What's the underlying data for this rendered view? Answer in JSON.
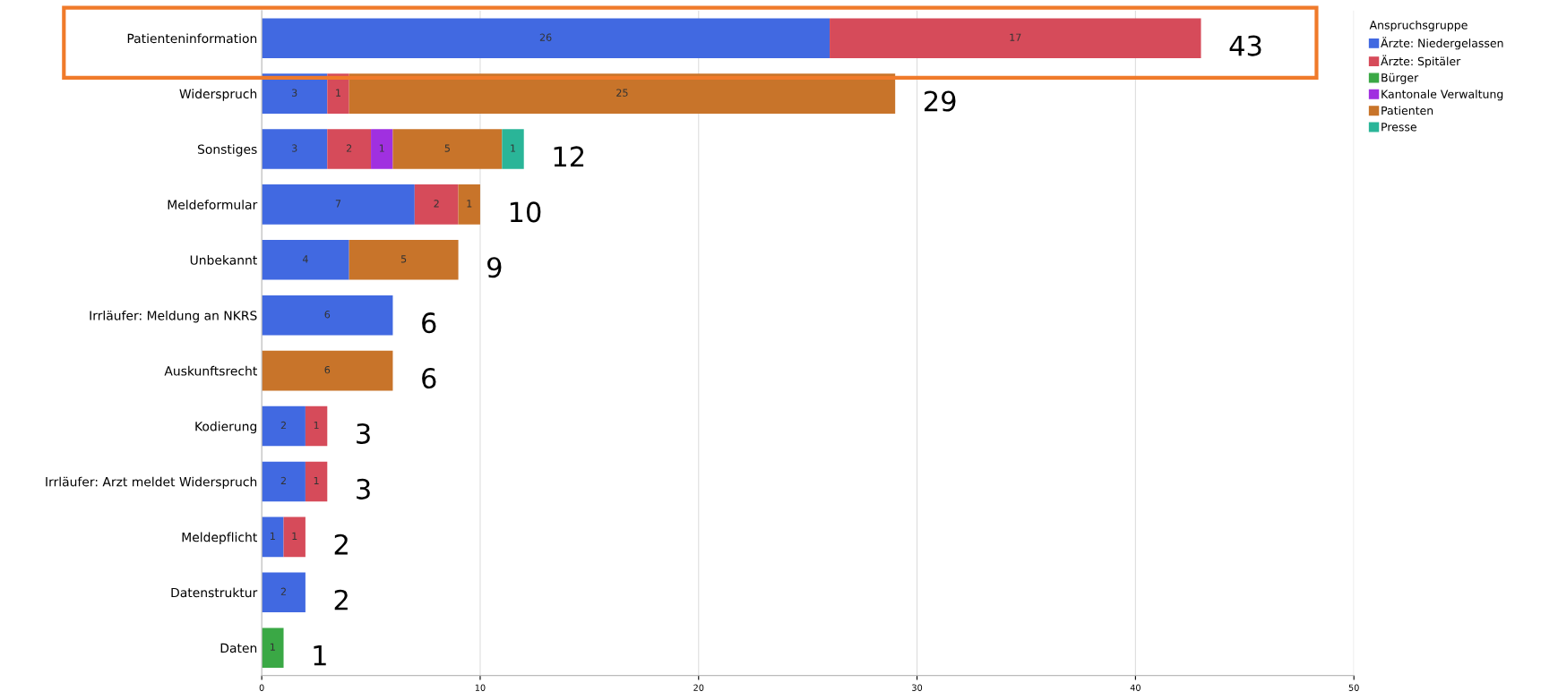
{
  "chart_data": {
    "type": "bar",
    "orientation": "horizontal",
    "stacked": true,
    "data_labels": true,
    "legend": "top right",
    "legend_title": "Anspruchsgruppe",
    "grid": "x",
    "categories": [
      "Patienteninformation",
      "Widerspruch",
      "Sonstiges",
      "Meldeformular",
      "Unbekannt",
      "Irrläufer: Meldung an NKRS",
      "Auskunftsrecht",
      "Kodierung",
      "Irrläufer: Arzt meldet Widerspruch",
      "Meldepflicht",
      "Datenstruktur",
      "Daten"
    ],
    "series": [
      {
        "name": "Ärzte: Niedergelassen",
        "color": "#4169e1",
        "values": [
          26,
          3,
          3,
          7,
          4,
          6,
          null,
          2,
          2,
          1,
          2,
          null
        ]
      },
      {
        "name": "Ärzte: Spitäler",
        "color": "#d64b5a",
        "values": [
          17,
          1,
          2,
          2,
          null,
          null,
          null,
          1,
          1,
          1,
          null,
          null
        ]
      },
      {
        "name": "Bürger",
        "color": "#3aa845",
        "values": [
          null,
          null,
          null,
          null,
          null,
          null,
          null,
          null,
          null,
          null,
          null,
          1
        ]
      },
      {
        "name": "Kantonale Verwaltung",
        "color": "#a030e0",
        "values": [
          null,
          null,
          1,
          null,
          null,
          null,
          null,
          null,
          null,
          null,
          null,
          null
        ]
      },
      {
        "name": "Patienten",
        "color": "#c8742a",
        "values": [
          null,
          25,
          5,
          1,
          5,
          null,
          6,
          null,
          null,
          null,
          null,
          null
        ]
      },
      {
        "name": "Presse",
        "color": "#2ab598",
        "values": [
          null,
          null,
          1,
          null,
          null,
          null,
          null,
          null,
          null,
          null,
          null,
          null
        ]
      }
    ],
    "totals": [
      "43",
      "29",
      "12",
      "10",
      "9",
      "6",
      "6",
      "3",
      "3",
      "2",
      "2",
      "1"
    ],
    "xlim": [
      0,
      50
    ],
    "xticks": [
      0,
      10,
      20,
      30,
      40,
      50
    ]
  }
}
